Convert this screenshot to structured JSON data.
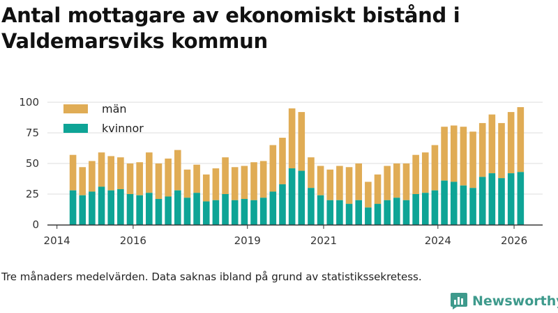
{
  "title": "Antal mottagare av ekonomiskt bistånd i Valdemarsviks kommun",
  "caption": "Tre månaders medelvärden. Data saknas ibland på grund av statistikssekretess.",
  "brand": {
    "name": "Newsworthy",
    "icon": "newsworthy-logo-icon"
  },
  "colors": {
    "men": "#e0ac55",
    "women": "#0ea496",
    "grid": "#dddddd",
    "axis": "#333333",
    "brand": "#3e9a8c"
  },
  "chart_data": {
    "type": "bar",
    "stacked": true,
    "title": "Antal mottagare av ekonomiskt bistånd i Valdemarsviks kommun",
    "xlabel": "",
    "ylabel": "",
    "ylim": [
      0,
      100
    ],
    "yticks": [
      0,
      25,
      50,
      75,
      100
    ],
    "xlim": [
      2013.75,
      2026.75
    ],
    "xticks": [
      2014,
      2016,
      2019,
      2021,
      2024,
      2026
    ],
    "x": [
      2014.42,
      2014.67,
      2014.92,
      2015.17,
      2015.42,
      2015.67,
      2015.92,
      2016.17,
      2016.42,
      2016.67,
      2016.92,
      2017.17,
      2017.42,
      2017.67,
      2017.92,
      2018.17,
      2018.42,
      2018.67,
      2018.92,
      2019.17,
      2019.42,
      2019.67,
      2019.92,
      2020.17,
      2020.42,
      2020.67,
      2020.92,
      2021.17,
      2021.42,
      2021.67,
      2021.92,
      2022.17,
      2022.42,
      2022.67,
      2022.92,
      2023.17,
      2023.42,
      2023.67,
      2023.92,
      2024.17,
      2024.42,
      2024.67,
      2024.92,
      2025.17,
      2025.42,
      2025.67,
      2025.92,
      2026.17
    ],
    "legend": [
      "män",
      "kvinnor"
    ],
    "legend_position": "top-left",
    "series": [
      {
        "name": "kvinnor",
        "key": "women",
        "values": [
          28,
          24,
          27,
          31,
          28,
          29,
          25,
          24,
          26,
          21,
          23,
          28,
          22,
          26,
          19,
          20,
          25,
          20,
          21,
          20,
          22,
          27,
          33,
          46,
          44,
          30,
          24,
          20,
          20,
          17,
          20,
          14,
          17,
          20,
          22,
          20,
          25,
          26,
          28,
          36,
          35,
          32,
          30,
          39,
          42,
          38,
          42,
          43
        ]
      },
      {
        "name": "män",
        "key": "men",
        "values": [
          29,
          23,
          25,
          28,
          28,
          26,
          25,
          27,
          33,
          29,
          31,
          33,
          23,
          23,
          22,
          26,
          30,
          27,
          27,
          31,
          30,
          38,
          38,
          49,
          48,
          25,
          24,
          25,
          28,
          30,
          30,
          21,
          24,
          28,
          28,
          30,
          32,
          33,
          37,
          44,
          46,
          48,
          46,
          44,
          48,
          45,
          50,
          53
        ]
      }
    ]
  }
}
